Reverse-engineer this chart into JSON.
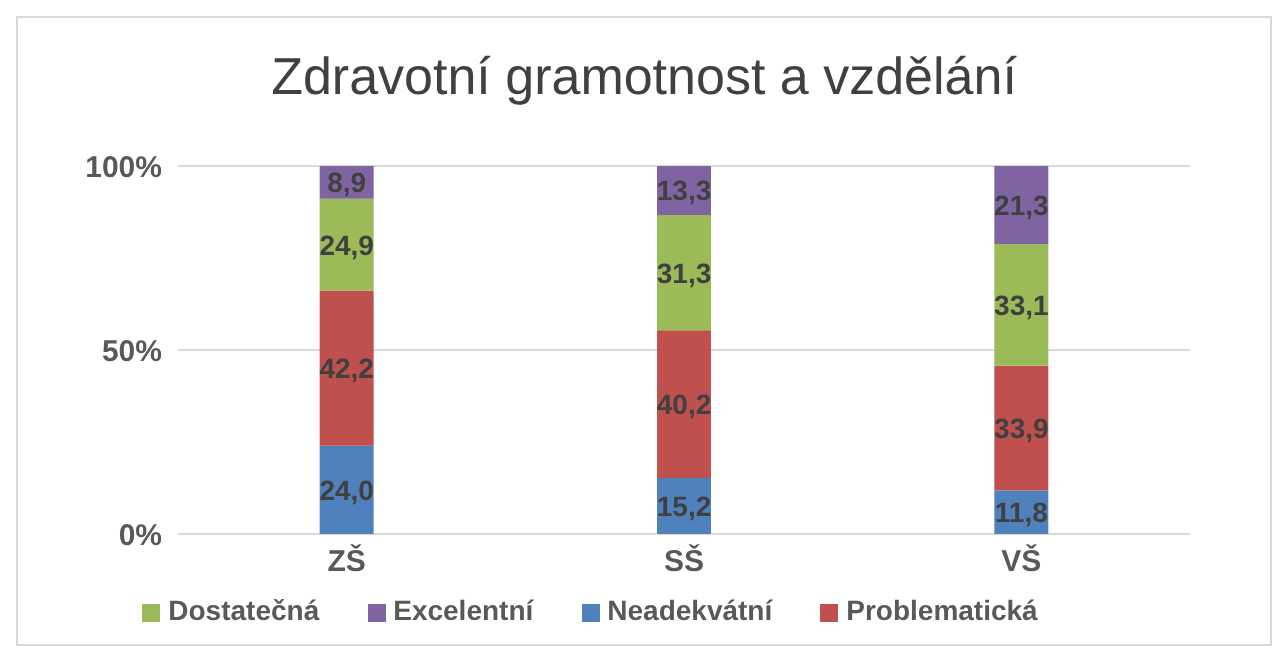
{
  "chart_data": {
    "type": "bar",
    "title": "Zdravotní gramotnost a vzdělání",
    "categories": [
      "ZŠ",
      "SŠ",
      "VŠ"
    ],
    "stacked": true,
    "series": [
      {
        "name": "Neadekvátní",
        "color": "#4f81bd",
        "values": [
          24.0,
          15.2,
          11.8
        ],
        "value_labels": [
          "24,0",
          "15,2",
          "11,8"
        ]
      },
      {
        "name": "Problematická",
        "color": "#c0504d",
        "values": [
          42.2,
          40.2,
          33.9
        ],
        "value_labels": [
          "42,2",
          "40,2",
          "33,9"
        ]
      },
      {
        "name": "Dostatečná",
        "color": "#9bbb59",
        "values": [
          24.9,
          31.3,
          33.1
        ],
        "value_labels": [
          "24,9",
          "31,3",
          "33,1"
        ]
      },
      {
        "name": "Excelentní",
        "color": "#8064a2",
        "values": [
          8.9,
          13.3,
          21.3
        ],
        "value_labels": [
          "8,9",
          "13,3",
          "21,3"
        ]
      }
    ],
    "ylim": [
      0,
      100
    ],
    "yticks": [
      {
        "value": 0,
        "label": "0%"
      },
      {
        "value": 50,
        "label": "50%"
      },
      {
        "value": 100,
        "label": "100%"
      }
    ],
    "grid": "y",
    "legend": "bottom"
  }
}
